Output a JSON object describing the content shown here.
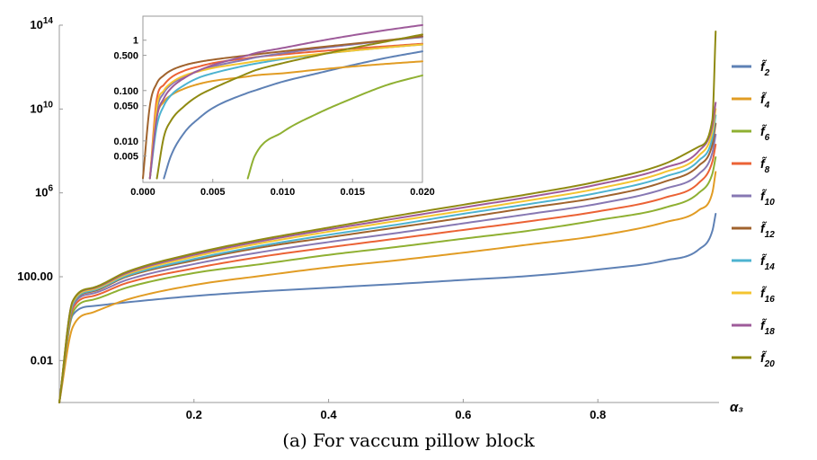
{
  "caption": "(a) For vaccum pillow block",
  "chart_data": [
    {
      "type": "line",
      "title": "",
      "xlabel": "α₃",
      "ylabel": "",
      "yscale": "log",
      "xlim": [
        0,
        0.98
      ],
      "ylim": [
        0.0001,
        100000000000000.0
      ],
      "x_ticks": [
        {
          "v": 0.2,
          "label": "0.2"
        },
        {
          "v": 0.4,
          "label": "0.4"
        },
        {
          "v": 0.6,
          "label": "0.6"
        },
        {
          "v": 0.8,
          "label": "0.8"
        }
      ],
      "y_ticks": [
        {
          "v": 0.01,
          "label": "0.01"
        },
        {
          "v": 100,
          "label": "100.00"
        },
        {
          "v": 1000000.0,
          "label": "10^6"
        },
        {
          "v": 10000000000.0,
          "label": "10^10"
        },
        {
          "v": 100000000000000.0,
          "label": "10^14"
        }
      ],
      "grid": false,
      "legend_position": "right",
      "x": [
        0,
        0.02,
        0.05,
        0.1,
        0.2,
        0.3,
        0.4,
        0.5,
        0.6,
        0.7,
        0.8,
        0.9,
        0.95,
        0.97,
        0.975
      ],
      "series": [
        {
          "name": "f̃2",
          "color": "#5E81B5",
          "values": [
            0.0001,
            1.5,
            4,
            6,
            12,
            20,
            30,
            45,
            70,
            110,
            220,
            600,
            2000,
            15000,
            100000.0
          ]
        },
        {
          "name": "f̃4",
          "color": "#E19C24",
          "values": [
            0.0001,
            0.4,
            2,
            8,
            40,
            110,
            280,
            600,
            1400,
            3500,
            9000,
            40000,
            150000.0,
            1000000.0,
            10000000.0
          ]
        },
        {
          "name": "f̃6",
          "color": "#8FB032",
          "values": [
            0.0001,
            2,
            8,
            30,
            150,
            400,
            1100,
            2600,
            6500,
            16000,
            50000,
            200000.0,
            1000000.0,
            8000000.0,
            50000000.0
          ]
        },
        {
          "name": "f̃8",
          "color": "#EB6235",
          "values": [
            0.0001,
            3,
            12,
            50,
            250,
            900,
            2500,
            6500,
            17000,
            45000,
            130000.0,
            600000.0,
            3000000.0,
            30000000.0,
            200000000.0
          ]
        },
        {
          "name": "f̃10",
          "color": "#8778B3",
          "values": [
            0.0001,
            4,
            16,
            70,
            400,
            1500,
            4500,
            12000,
            35000,
            100000.0,
            300000.0,
            1600000.0,
            8000000.0,
            80000000.0,
            600000000.0
          ]
        },
        {
          "name": "f̃12",
          "color": "#A0632D",
          "values": [
            0.0001,
            5,
            20,
            100,
            600,
            2500,
            7500,
            22000,
            65000,
            200000.0,
            600000.0,
            3500000.0,
            20000000.0,
            200000000.0,
            2000000000.0
          ]
        },
        {
          "name": "f̃14",
          "color": "#4DB3D0",
          "values": [
            0.0001,
            5,
            22,
            110,
            700,
            3000,
            10000,
            30000,
            100000.0,
            300000.0,
            1000000.0,
            6000000.0,
            35000000.0,
            400000000.0,
            5000000000.0
          ]
        },
        {
          "name": "f̃16",
          "color": "#F4C430",
          "values": [
            0.0001,
            6,
            25,
            130,
            900,
            4000,
            14000,
            45000,
            140000.0,
            450000.0,
            1600000.0,
            10000000.0,
            60000000.0,
            800000000.0,
            10000000000.0
          ]
        },
        {
          "name": "f̃18",
          "color": "#9E5B9A",
          "values": [
            0.0001,
            7,
            28,
            150,
            1100,
            5000,
            18000,
            60000,
            200000.0,
            650000.0,
            2500000.0,
            16000000.0,
            100000000.0,
            1500000000.0,
            20000000000.0
          ]
        },
        {
          "name": "f̃20",
          "color": "#8F8A12",
          "values": [
            0.0001,
            7,
            30,
            170,
            1300,
            6000,
            22000,
            80000,
            270000.0,
            900000.0,
            3500000.0,
            25000000.0,
            160000000.0,
            3000000000.0,
            50000000000000.0
          ]
        }
      ]
    },
    {
      "type": "line",
      "title": "",
      "xlabel": "",
      "ylabel": "",
      "yscale": "log",
      "xlim": [
        0,
        0.02
      ],
      "ylim": [
        0.0015,
        3
      ],
      "x_ticks": [
        {
          "v": 0.0,
          "label": "0.000"
        },
        {
          "v": 0.005,
          "label": "0.005"
        },
        {
          "v": 0.01,
          "label": "0.010"
        },
        {
          "v": 0.015,
          "label": "0.015"
        },
        {
          "v": 0.02,
          "label": "0.020"
        }
      ],
      "y_ticks": [
        {
          "v": 0.005,
          "label": "0.005"
        },
        {
          "v": 0.01,
          "label": "0.010"
        },
        {
          "v": 0.05,
          "label": "0.050"
        },
        {
          "v": 0.1,
          "label": "0.100"
        },
        {
          "v": 0.5,
          "label": "0.500"
        },
        {
          "v": 1,
          "label": "1"
        }
      ],
      "x": [
        0.0,
        0.0005,
        0.001,
        0.0015,
        0.002,
        0.003,
        0.004,
        0.005,
        0.0075,
        0.008,
        0.01,
        0.0125,
        0.015,
        0.0175,
        0.02
      ],
      "series": [
        {
          "name": "f̃2",
          "color": "#5E81B5",
          "values": [
            null,
            null,
            null,
            0.0018,
            0.005,
            0.015,
            0.028,
            0.045,
            0.09,
            0.1,
            0.15,
            0.22,
            0.32,
            0.45,
            0.6
          ]
        },
        {
          "name": "f̃4",
          "color": "#E19C24",
          "values": [
            null,
            0.0018,
            0.03,
            0.06,
            0.08,
            0.11,
            0.135,
            0.155,
            0.19,
            0.2,
            0.22,
            0.26,
            0.3,
            0.34,
            0.38
          ]
        },
        {
          "name": "f̃6",
          "color": "#8FB032",
          "values": [
            null,
            null,
            null,
            null,
            null,
            null,
            null,
            null,
            0.0018,
            0.005,
            0.015,
            0.035,
            0.07,
            0.13,
            0.2
          ]
        },
        {
          "name": "f̃8",
          "color": "#EB6235",
          "values": [
            null,
            0.0018,
            0.07,
            0.13,
            0.18,
            0.25,
            0.3,
            0.35,
            0.44,
            0.46,
            0.52,
            0.6,
            0.68,
            0.76,
            0.85
          ]
        },
        {
          "name": "f̃10",
          "color": "#8778B3",
          "values": [
            null,
            0.0018,
            0.04,
            0.09,
            0.13,
            0.19,
            0.25,
            0.3,
            0.42,
            0.45,
            0.55,
            0.68,
            0.82,
            0.98,
            1.15
          ]
        },
        {
          "name": "f̃12",
          "color": "#A0632D",
          "values": [
            0.0018,
            0.05,
            0.14,
            0.2,
            0.25,
            0.32,
            0.37,
            0.41,
            0.5,
            0.52,
            0.6,
            0.72,
            0.85,
            1.0,
            1.2
          ]
        },
        {
          "name": "f̃14",
          "color": "#4DB3D0",
          "values": [
            null,
            0.0018,
            0.02,
            0.05,
            0.08,
            0.13,
            0.18,
            0.22,
            0.32,
            0.34,
            0.42,
            0.52,
            0.62,
            0.72,
            0.82
          ]
        },
        {
          "name": "f̃16",
          "color": "#F4C430",
          "values": [
            null,
            0.0018,
            0.05,
            0.1,
            0.14,
            0.2,
            0.24,
            0.28,
            0.36,
            0.38,
            0.44,
            0.53,
            0.62,
            0.72,
            0.82
          ]
        },
        {
          "name": "f̃18",
          "color": "#9E5B9A",
          "values": [
            null,
            0.0018,
            0.03,
            0.07,
            0.11,
            0.18,
            0.25,
            0.32,
            0.5,
            0.55,
            0.7,
            0.95,
            1.25,
            1.6,
            2.0
          ]
        },
        {
          "name": "f̃20",
          "color": "#8F8A12",
          "values": [
            null,
            null,
            0.0018,
            0.012,
            0.025,
            0.05,
            0.08,
            0.11,
            0.22,
            0.25,
            0.35,
            0.5,
            0.7,
            0.95,
            1.3
          ]
        }
      ]
    }
  ],
  "legend": [
    {
      "letter": "f̃",
      "sub": "2",
      "color": "#5E81B5"
    },
    {
      "letter": "f̃",
      "sub": "4",
      "color": "#E19C24"
    },
    {
      "letter": "f̃",
      "sub": "6",
      "color": "#8FB032"
    },
    {
      "letter": "f̃",
      "sub": "8",
      "color": "#EB6235"
    },
    {
      "letter": "f̃",
      "sub": "10",
      "color": "#8778B3"
    },
    {
      "letter": "f̃",
      "sub": "12",
      "color": "#A0632D"
    },
    {
      "letter": "f̃",
      "sub": "14",
      "color": "#4DB3D0"
    },
    {
      "letter": "f̃",
      "sub": "16",
      "color": "#F4C430"
    },
    {
      "letter": "f̃",
      "sub": "18",
      "color": "#9E5B9A"
    },
    {
      "letter": "f̃",
      "sub": "20",
      "color": "#8F8A12"
    }
  ]
}
